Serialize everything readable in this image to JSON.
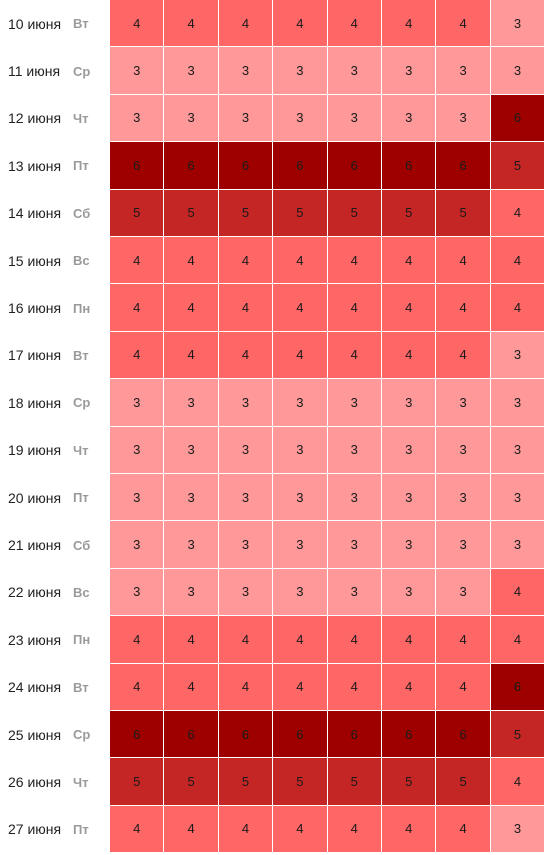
{
  "level_colors": {
    "3": "#ff9999",
    "4": "#ff6666",
    "5": "#c42525",
    "6": "#9e0000"
  },
  "rows": [
    {
      "date": "10 июня",
      "dow": "Вт",
      "values": [
        4,
        4,
        4,
        4,
        4,
        4,
        4,
        3
      ]
    },
    {
      "date": "11 июня",
      "dow": "Ср",
      "values": [
        3,
        3,
        3,
        3,
        3,
        3,
        3,
        3
      ]
    },
    {
      "date": "12 июня",
      "dow": "Чт",
      "values": [
        3,
        3,
        3,
        3,
        3,
        3,
        3,
        6
      ]
    },
    {
      "date": "13 июня",
      "dow": "Пт",
      "values": [
        6,
        6,
        6,
        6,
        6,
        6,
        6,
        5
      ]
    },
    {
      "date": "14 июня",
      "dow": "Сб",
      "values": [
        5,
        5,
        5,
        5,
        5,
        5,
        5,
        4
      ]
    },
    {
      "date": "15 июня",
      "dow": "Вс",
      "values": [
        4,
        4,
        4,
        4,
        4,
        4,
        4,
        4
      ]
    },
    {
      "date": "16 июня",
      "dow": "Пн",
      "values": [
        4,
        4,
        4,
        4,
        4,
        4,
        4,
        4
      ]
    },
    {
      "date": "17 июня",
      "dow": "Вт",
      "values": [
        4,
        4,
        4,
        4,
        4,
        4,
        4,
        3
      ]
    },
    {
      "date": "18 июня",
      "dow": "Ср",
      "values": [
        3,
        3,
        3,
        3,
        3,
        3,
        3,
        3
      ]
    },
    {
      "date": "19 июня",
      "dow": "Чт",
      "values": [
        3,
        3,
        3,
        3,
        3,
        3,
        3,
        3
      ]
    },
    {
      "date": "20 июня",
      "dow": "Пт",
      "values": [
        3,
        3,
        3,
        3,
        3,
        3,
        3,
        3
      ]
    },
    {
      "date": "21 июня",
      "dow": "Сб",
      "values": [
        3,
        3,
        3,
        3,
        3,
        3,
        3,
        3
      ]
    },
    {
      "date": "22 июня",
      "dow": "Вс",
      "values": [
        3,
        3,
        3,
        3,
        3,
        3,
        3,
        4
      ]
    },
    {
      "date": "23 июня",
      "dow": "Пн",
      "values": [
        4,
        4,
        4,
        4,
        4,
        4,
        4,
        4
      ]
    },
    {
      "date": "24 июня",
      "dow": "Вт",
      "values": [
        4,
        4,
        4,
        4,
        4,
        4,
        4,
        6
      ]
    },
    {
      "date": "25 июня",
      "dow": "Ср",
      "values": [
        6,
        6,
        6,
        6,
        6,
        6,
        6,
        5
      ]
    },
    {
      "date": "26 июня",
      "dow": "Чт",
      "values": [
        5,
        5,
        5,
        5,
        5,
        5,
        5,
        4
      ]
    },
    {
      "date": "27 июня",
      "dow": "Пт",
      "values": [
        4,
        4,
        4,
        4,
        4,
        4,
        4,
        3
      ]
    }
  ]
}
